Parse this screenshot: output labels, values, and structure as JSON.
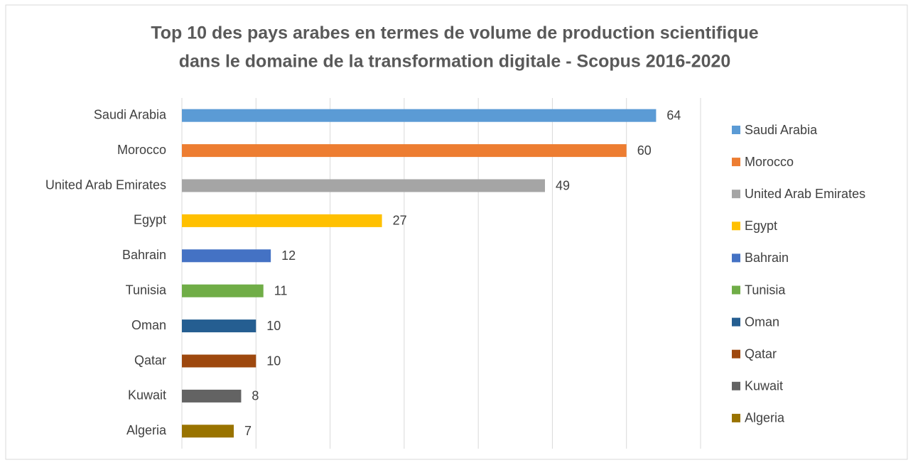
{
  "chart_data": {
    "type": "bar",
    "orientation": "horizontal",
    "title": [
      "Top 10 des pays arabes en termes de volume de production scientifique",
      "dans le domaine de la transformation digitale - Scopus 2016-2020"
    ],
    "categories": [
      "Saudi Arabia",
      "Morocco",
      "United Arab Emirates",
      "Egypt",
      "Bahrain",
      "Tunisia",
      "Oman",
      "Qatar",
      "Kuwait",
      "Algeria"
    ],
    "values": [
      64,
      60,
      49,
      27,
      12,
      11,
      10,
      10,
      8,
      7
    ],
    "colors": [
      "#5b9bd5",
      "#ed7d31",
      "#a5a5a5",
      "#ffc000",
      "#4472c4",
      "#70ad47",
      "#255e91",
      "#9e480e",
      "#636363",
      "#997300"
    ],
    "xlim": [
      0,
      70
    ],
    "xticks": [
      0,
      10,
      20,
      30,
      40,
      50,
      60,
      70
    ],
    "grid": true,
    "legend": "right"
  }
}
